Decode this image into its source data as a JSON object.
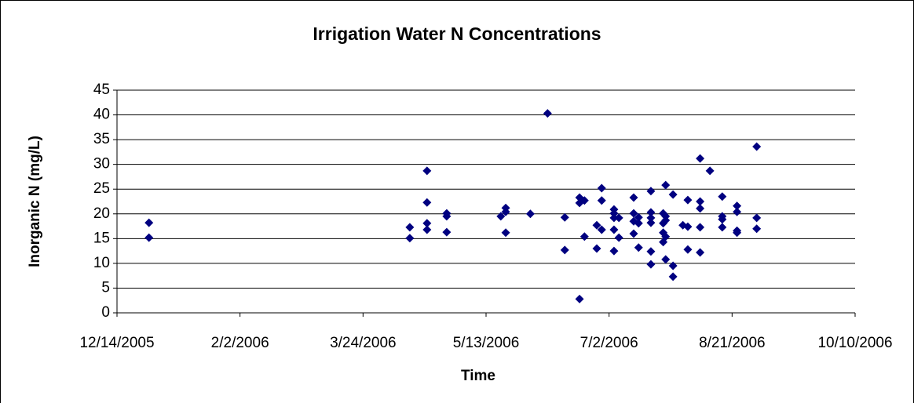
{
  "chart_data": {
    "type": "scatter",
    "title": "Irrigation Water N Concentrations",
    "x_label": "Time",
    "y_label": "Inorganic N (mg/L)",
    "color": "#000080",
    "grid": true,
    "xlim": [
      "12/14/2005",
      "10/10/2006"
    ],
    "xticks": [
      "12/14/2005",
      "2/2/2006",
      "3/24/2006",
      "5/13/2006",
      "7/2/2006",
      "8/21/2006",
      "10/10/2006"
    ],
    "ylim": [
      0,
      45
    ],
    "yticks": [
      0,
      5,
      10,
      15,
      20,
      25,
      30,
      35,
      40,
      45
    ],
    "x": [
      "12/27/2005",
      "12/27/2005",
      "4/12/2006",
      "4/12/2006",
      "4/19/2006",
      "4/19/2006",
      "4/19/2006",
      "4/19/2006",
      "4/27/2006",
      "4/27/2006",
      "4/27/2006",
      "5/19/2006",
      "5/21/2006",
      "5/21/2006",
      "5/21/2006",
      "5/31/2006",
      "6/7/2006",
      "6/14/2006",
      "6/14/2006",
      "6/20/2006",
      "6/20/2006",
      "6/20/2006",
      "6/22/2006",
      "6/22/2006",
      "6/27/2006",
      "6/27/2006",
      "6/29/2006",
      "6/29/2006",
      "6/29/2006",
      "7/4/2006",
      "7/4/2006",
      "7/4/2006",
      "7/4/2006",
      "7/4/2006",
      "7/6/2006",
      "7/6/2006",
      "7/12/2006",
      "7/12/2006",
      "7/12/2006",
      "7/12/2006",
      "7/14/2006",
      "7/14/2006",
      "7/14/2006",
      "7/19/2006",
      "7/19/2006",
      "7/19/2006",
      "7/19/2006",
      "7/19/2006",
      "7/19/2006",
      "7/24/2006",
      "7/24/2006",
      "7/24/2006",
      "7/24/2006",
      "7/25/2006",
      "7/25/2006",
      "7/25/2006",
      "7/25/2006",
      "7/25/2006",
      "7/28/2006",
      "7/28/2006",
      "7/28/2006",
      "8/1/2006",
      "8/3/2006",
      "8/3/2006",
      "8/3/2006",
      "8/8/2006",
      "8/8/2006",
      "8/8/2006",
      "8/8/2006",
      "8/8/2006",
      "8/12/2006",
      "8/17/2006",
      "8/17/2006",
      "8/17/2006",
      "8/17/2006",
      "8/23/2006",
      "8/23/2006",
      "8/23/2006",
      "8/23/2006",
      "8/31/2006",
      "8/31/2006",
      "8/31/2006"
    ],
    "values": [
      18.2,
      15.2,
      17.3,
      15.1,
      28.7,
      22.3,
      18.1,
      16.8,
      20.1,
      19.5,
      16.3,
      19.5,
      21.2,
      20.4,
      16.2,
      20.0,
      40.3,
      19.3,
      12.7,
      2.8,
      23.3,
      22.2,
      22.7,
      15.4,
      17.7,
      13.0,
      25.2,
      22.7,
      16.8,
      20.9,
      20.1,
      19.2,
      16.8,
      12.5,
      19.2,
      15.2,
      23.3,
      20.1,
      18.5,
      16.0,
      19.3,
      18.1,
      13.2,
      24.6,
      20.3,
      19.2,
      18.2,
      12.4,
      9.8,
      20.1,
      18.1,
      16.2,
      14.3,
      25.8,
      19.5,
      18.7,
      15.4,
      10.8,
      23.9,
      9.5,
      7.3,
      17.7,
      22.8,
      17.4,
      12.8,
      31.2,
      22.5,
      21.1,
      17.3,
      12.2,
      28.7,
      23.5,
      19.5,
      18.9,
      17.3,
      21.6,
      20.4,
      16.6,
      16.2,
      33.6,
      19.2,
      17.0
    ]
  }
}
